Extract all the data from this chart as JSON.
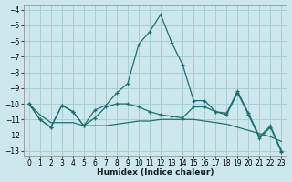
{
  "xlabel": "Humidex (Indice chaleur)",
  "bg_color": "#cce8ed",
  "grid_color": "#a8cfd6",
  "line_color": "#1d7070",
  "xlim": [
    -0.5,
    23.5
  ],
  "ylim": [
    -13.3,
    -3.7
  ],
  "yticks": [
    -4,
    -5,
    -6,
    -7,
    -8,
    -9,
    -10,
    -11,
    -12,
    -13
  ],
  "xticks": [
    0,
    1,
    2,
    3,
    4,
    5,
    6,
    7,
    8,
    9,
    10,
    11,
    12,
    13,
    14,
    15,
    16,
    17,
    18,
    19,
    20,
    21,
    22,
    23
  ],
  "curves": [
    {
      "x": [
        0,
        1,
        2,
        3,
        4,
        5,
        6,
        7,
        8,
        9,
        10,
        11,
        12,
        13,
        14,
        15,
        16,
        17,
        18,
        19,
        20,
        21,
        22,
        23
      ],
      "y": [
        -10.0,
        -11.0,
        -11.5,
        -10.1,
        -10.5,
        -11.4,
        -10.4,
        -10.1,
        -9.3,
        -8.7,
        -6.2,
        -5.4,
        -4.3,
        -6.1,
        -7.5,
        -9.8,
        -9.8,
        -10.5,
        -10.6,
        -9.2,
        -10.6,
        -12.1,
        -11.4,
        -13.0
      ],
      "marker": true
    },
    {
      "x": [
        0,
        1,
        2,
        3,
        4,
        5,
        6,
        7,
        8,
        9,
        10,
        11,
        12,
        13,
        14,
        15,
        16,
        17,
        18,
        19,
        20,
        21,
        22,
        23
      ],
      "y": [
        -10.0,
        -10.7,
        -11.2,
        -11.2,
        -11.2,
        -11.4,
        -11.4,
        -11.4,
        -11.3,
        -11.2,
        -11.1,
        -11.1,
        -11.0,
        -11.0,
        -11.0,
        -11.0,
        -11.1,
        -11.2,
        -11.3,
        -11.5,
        -11.7,
        -11.9,
        -12.1,
        -12.4
      ],
      "marker": false
    },
    {
      "x": [
        0,
        1,
        2,
        3,
        4,
        5,
        6,
        7,
        8,
        9,
        10,
        11,
        12,
        13,
        14,
        15,
        16,
        17,
        18,
        19,
        20,
        21,
        22,
        23
      ],
      "y": [
        -10.0,
        -11.0,
        -11.5,
        -10.1,
        -10.5,
        -11.4,
        -10.9,
        -10.2,
        -10.0,
        -10.0,
        -10.2,
        -10.5,
        -10.7,
        -10.8,
        -10.9,
        -10.2,
        -10.2,
        -10.5,
        -10.7,
        -9.3,
        -10.7,
        -12.2,
        -11.5,
        -13.1
      ],
      "marker": true
    }
  ]
}
